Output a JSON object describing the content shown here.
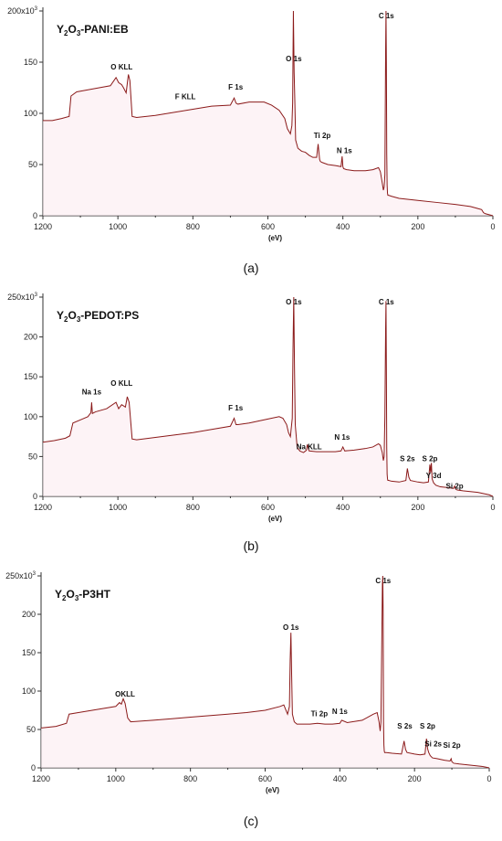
{
  "chart_data": [
    {
      "type": "line",
      "title": "Y₂O₃-PANI:EB",
      "title_base": "Y",
      "title_sub1": "2",
      "title_mid": "O",
      "title_sub2": "3",
      "title_rest": "-PANI:EB",
      "xlabel": "(eV)",
      "caption": "(a)",
      "xlim": [
        1200,
        0
      ],
      "ylim": [
        0,
        200
      ],
      "xticks": [
        1200,
        1000,
        800,
        600,
        400,
        200,
        0
      ],
      "yticks": [
        0,
        50,
        100,
        150,
        200
      ],
      "ytick_labels": [
        "0",
        "50",
        "100",
        "150",
        "200x10"
      ],
      "ytick_exp": "3",
      "grid": false,
      "series": [
        {
          "color": "#8b1a1a",
          "x": [
            1200,
            1175,
            1150,
            1130,
            1125,
            1110,
            1080,
            1050,
            1020,
            1005,
            998,
            990,
            985,
            978,
            972,
            968,
            962,
            950,
            900,
            850,
            800,
            750,
            700,
            690,
            685,
            680,
            650,
            610,
            590,
            570,
            555,
            548,
            540,
            536,
            534,
            532,
            530,
            528,
            526,
            520,
            510,
            500,
            490,
            480,
            470,
            466,
            462,
            460,
            455,
            440,
            420,
            405,
            402,
            400,
            398,
            390,
            370,
            340,
            320,
            305,
            300,
            295,
            292,
            290,
            288,
            286,
            285,
            284,
            283,
            282,
            281,
            280,
            278,
            270,
            250,
            200,
            150,
            100,
            60,
            40,
            30,
            25,
            20,
            10,
            0
          ],
          "y": [
            93,
            93,
            95,
            97,
            117,
            121,
            123,
            125,
            127,
            135,
            130,
            128,
            125,
            120,
            138,
            132,
            97,
            96,
            98,
            101,
            104,
            107,
            108,
            115,
            110,
            109,
            111,
            111,
            108,
            103,
            95,
            85,
            80,
            88,
            110,
            210,
            140,
            110,
            74,
            66,
            63,
            62,
            59,
            57,
            57,
            70,
            55,
            53,
            52,
            50,
            49,
            48,
            58,
            48,
            46,
            45,
            44,
            44,
            45,
            47,
            43,
            32,
            25,
            28,
            40,
            160,
            205,
            150,
            60,
            30,
            22,
            20,
            20,
            19,
            17,
            15,
            13,
            11,
            9,
            7,
            6,
            3,
            2,
            1,
            0
          ]
        }
      ],
      "annotations": [
        {
          "text": "C 1s",
          "x": 284,
          "y": 212
        },
        {
          "text": "O 1s",
          "x": 531,
          "y": 151
        },
        {
          "text": "O KLL",
          "x": 990,
          "y": 143
        },
        {
          "text": "F KLL",
          "x": 820,
          "y": 114
        },
        {
          "text": "F 1s",
          "x": 686,
          "y": 123
        },
        {
          "text": "Ti 2p",
          "x": 455,
          "y": 76
        },
        {
          "text": "N 1s",
          "x": 396,
          "y": 61
        }
      ]
    },
    {
      "type": "line",
      "title": "Y₂O₃-PEDOT:PS",
      "title_base": "Y",
      "title_sub1": "2",
      "title_mid": "O",
      "title_sub2": "3",
      "title_rest": "-PEDOT:PS",
      "xlabel": "(eV)",
      "caption": "(b)",
      "xlim": [
        1200,
        0
      ],
      "ylim": [
        0,
        250
      ],
      "xticks": [
        1200,
        1000,
        800,
        600,
        400,
        200,
        0
      ],
      "yticks": [
        0,
        50,
        100,
        150,
        200,
        250
      ],
      "ytick_labels": [
        "0",
        "50",
        "100",
        "150",
        "200",
        "250x10"
      ],
      "ytick_exp": "3",
      "grid": false,
      "series": [
        {
          "color": "#8b1a1a",
          "x": [
            1200,
            1170,
            1140,
            1128,
            1120,
            1100,
            1080,
            1072,
            1070,
            1068,
            1060,
            1030,
            1005,
            998,
            990,
            980,
            975,
            970,
            962,
            950,
            900,
            850,
            800,
            750,
            700,
            690,
            685,
            680,
            650,
            600,
            570,
            560,
            550,
            545,
            540,
            535,
            533,
            531,
            529,
            527,
            522,
            515,
            505,
            497,
            495,
            490,
            470,
            440,
            420,
            405,
            400,
            395,
            370,
            340,
            320,
            305,
            300,
            295,
            292,
            290,
            288,
            286,
            285,
            284,
            283,
            282,
            281,
            280,
            278,
            270,
            250,
            232,
            228,
            224,
            220,
            200,
            185,
            172,
            168,
            166,
            164,
            162,
            158,
            152,
            140,
            120,
            105,
            102,
            99,
            95,
            80,
            60,
            40,
            30,
            20,
            10,
            0
          ],
          "y": [
            68,
            70,
            73,
            76,
            92,
            96,
            100,
            105,
            118,
            104,
            106,
            110,
            118,
            110,
            115,
            112,
            125,
            118,
            72,
            71,
            74,
            77,
            80,
            84,
            88,
            98,
            90,
            90,
            92,
            97,
            100,
            98,
            90,
            80,
            75,
            98,
            185,
            270,
            160,
            90,
            62,
            57,
            55,
            58,
            65,
            57,
            56,
            56,
            56,
            57,
            62,
            57,
            58,
            60,
            62,
            66,
            64,
            55,
            45,
            50,
            100,
            210,
            245,
            160,
            60,
            28,
            22,
            20,
            20,
            19,
            18,
            20,
            35,
            24,
            20,
            18,
            17,
            18,
            40,
            30,
            42,
            22,
            17,
            14,
            12,
            11,
            10,
            13,
            9,
            8,
            7,
            6,
            5,
            4,
            3,
            2,
            0
          ]
        }
      ],
      "annotations": [
        {
          "text": "C 1s",
          "x": 284,
          "y": 270
        },
        {
          "text": "O 1s",
          "x": 531,
          "y": 250
        },
        {
          "text": "Na 1s",
          "x": 1070,
          "y": 128
        },
        {
          "text": "O KLL",
          "x": 990,
          "y": 139
        },
        {
          "text": "F 1s",
          "x": 686,
          "y": 108
        },
        {
          "text": "Na KLL",
          "x": 490,
          "y": 59
        },
        {
          "text": "N 1s",
          "x": 402,
          "y": 71
        },
        {
          "text": "S 2s",
          "x": 228,
          "y": 44
        },
        {
          "text": "S 2p",
          "x": 168,
          "y": 44
        },
        {
          "text": "Y 3d",
          "x": 158,
          "y": 23
        },
        {
          "text": "Si 2p",
          "x": 102,
          "y": 10
        }
      ]
    },
    {
      "type": "line",
      "title": "Y₂O₃-P3HT",
      "title_base": "Y",
      "title_sub1": "2",
      "title_mid": "O",
      "title_sub2": "3",
      "title_rest": "-P3HT",
      "xlabel": "(eV)",
      "caption": "(c)",
      "xlim": [
        1200,
        0
      ],
      "ylim": [
        0,
        250
      ],
      "xticks": [
        1200,
        1000,
        800,
        600,
        400,
        200,
        0
      ],
      "yticks": [
        0,
        50,
        100,
        150,
        200,
        250
      ],
      "ytick_labels": [
        "0",
        "50",
        "100",
        "150",
        "200",
        "250x10"
      ],
      "ytick_exp": "3",
      "grid": false,
      "series": [
        {
          "color": "#8b1a1a",
          "x": [
            1200,
            1160,
            1132,
            1125,
            1100,
            1050,
            1000,
            990,
            985,
            980,
            975,
            968,
            960,
            900,
            850,
            800,
            750,
            700,
            650,
            600,
            560,
            550,
            545,
            540,
            535,
            533,
            531,
            529,
            527,
            522,
            515,
            500,
            480,
            460,
            440,
            420,
            400,
            395,
            380,
            340,
            310,
            300,
            295,
            292,
            290,
            288,
            286,
            285,
            284,
            283,
            282,
            281,
            280,
            275,
            260,
            235,
            228,
            224,
            220,
            200,
            185,
            172,
            168,
            165,
            162,
            158,
            152,
            140,
            120,
            105,
            102,
            100,
            95,
            80,
            60,
            40,
            20,
            10,
            0
          ],
          "y": [
            52,
            54,
            58,
            70,
            72,
            76,
            80,
            85,
            83,
            90,
            84,
            65,
            60,
            62,
            64,
            66,
            68,
            70,
            72,
            75,
            80,
            82,
            76,
            70,
            80,
            140,
            176,
            120,
            70,
            60,
            57,
            57,
            57,
            58,
            57,
            57,
            58,
            62,
            59,
            62,
            70,
            72,
            60,
            48,
            60,
            150,
            240,
            280,
            200,
            60,
            30,
            22,
            20,
            20,
            19,
            18,
            35,
            24,
            20,
            18,
            17,
            18,
            38,
            25,
            20,
            16,
            13,
            12,
            10,
            9,
            12,
            8,
            6,
            5,
            4,
            3,
            2,
            1,
            0
          ]
        }
      ],
      "annotations": [
        {
          "text": "C 1s",
          "x": 284,
          "y": 268
        },
        {
          "text": "O 1s",
          "x": 531,
          "y": 180
        },
        {
          "text": "OKLL",
          "x": 975,
          "y": 93
        },
        {
          "text": "Ti 2p",
          "x": 455,
          "y": 67
        },
        {
          "text": "N 1s",
          "x": 400,
          "y": 70
        },
        {
          "text": "S 2s",
          "x": 226,
          "y": 51
        },
        {
          "text": "S 2p",
          "x": 165,
          "y": 51
        },
        {
          "text": "Si 2s",
          "x": 150,
          "y": 28
        },
        {
          "text": "Si 2p",
          "x": 100,
          "y": 26
        }
      ]
    }
  ]
}
